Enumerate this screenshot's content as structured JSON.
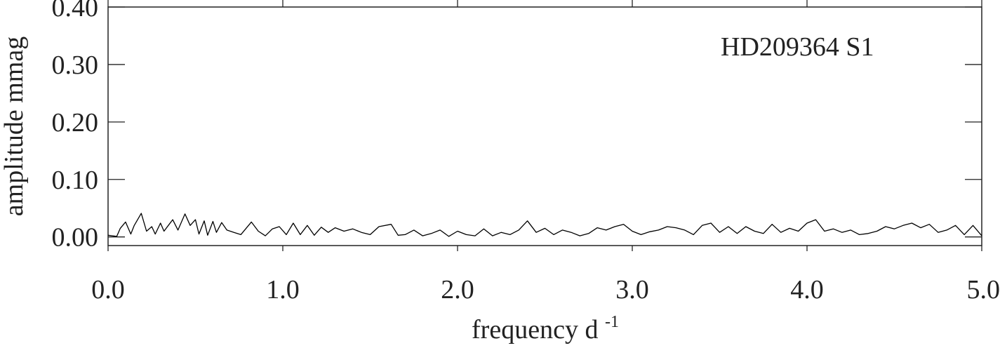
{
  "chart_data": {
    "type": "line",
    "title": "",
    "annotation": "HD209364 S1",
    "xlabel": "frequency d",
    "xlabel_superscript": "-1",
    "ylabel": "amplitude mmag",
    "xlim": [
      0.0,
      5.0
    ],
    "ylim": [
      -0.015,
      0.4
    ],
    "x_ticks": [
      0.0,
      1.0,
      2.0,
      3.0,
      4.0,
      5.0
    ],
    "x_tick_labels": [
      "0.0",
      "1.0",
      "2.0",
      "3.0",
      "4.0",
      "5.0"
    ],
    "y_ticks": [
      0.0,
      0.1,
      0.2,
      0.3,
      0.4
    ],
    "y_tick_labels": [
      "0.00",
      "0.10",
      "0.20",
      "0.30",
      "0.40"
    ],
    "grid": false,
    "legend": "none",
    "series": [
      {
        "color": "#000000",
        "x": [
          0.0,
          0.05,
          0.07,
          0.1,
          0.13,
          0.15,
          0.19,
          0.22,
          0.25,
          0.27,
          0.3,
          0.32,
          0.35,
          0.37,
          0.4,
          0.44,
          0.47,
          0.5,
          0.52,
          0.55,
          0.57,
          0.6,
          0.62,
          0.65,
          0.68,
          0.72,
          0.76,
          0.82,
          0.86,
          0.9,
          0.94,
          0.98,
          1.02,
          1.06,
          1.1,
          1.14,
          1.18,
          1.22,
          1.26,
          1.3,
          1.35,
          1.4,
          1.45,
          1.5,
          1.55,
          1.62,
          1.66,
          1.7,
          1.75,
          1.8,
          1.85,
          1.9,
          1.95,
          2.0,
          2.05,
          2.1,
          2.15,
          2.2,
          2.25,
          2.3,
          2.35,
          2.4,
          2.45,
          2.5,
          2.55,
          2.6,
          2.65,
          2.7,
          2.75,
          2.8,
          2.85,
          2.9,
          2.95,
          3.0,
          3.05,
          3.1,
          3.15,
          3.2,
          3.25,
          3.3,
          3.35,
          3.4,
          3.45,
          3.5,
          3.55,
          3.6,
          3.65,
          3.7,
          3.75,
          3.8,
          3.85,
          3.9,
          3.95,
          4.0,
          4.05,
          4.1,
          4.15,
          4.2,
          4.25,
          4.3,
          4.35,
          4.4,
          4.45,
          4.5,
          4.55,
          4.6,
          4.65,
          4.7,
          4.75,
          4.8,
          4.85,
          4.9,
          4.95,
          5.0
        ],
        "y": [
          0.003,
          0.001,
          0.015,
          0.026,
          0.005,
          0.02,
          0.041,
          0.01,
          0.018,
          0.005,
          0.024,
          0.01,
          0.022,
          0.03,
          0.012,
          0.04,
          0.02,
          0.03,
          0.005,
          0.028,
          0.003,
          0.027,
          0.008,
          0.025,
          0.012,
          0.008,
          0.004,
          0.026,
          0.01,
          0.002,
          0.014,
          0.018,
          0.004,
          0.024,
          0.004,
          0.02,
          0.003,
          0.017,
          0.008,
          0.016,
          0.01,
          0.014,
          0.008,
          0.004,
          0.018,
          0.022,
          0.003,
          0.004,
          0.012,
          0.002,
          0.006,
          0.012,
          0.001,
          0.01,
          0.004,
          0.002,
          0.014,
          0.002,
          0.008,
          0.004,
          0.012,
          0.028,
          0.008,
          0.015,
          0.004,
          0.012,
          0.008,
          0.002,
          0.006,
          0.016,
          0.012,
          0.018,
          0.022,
          0.01,
          0.004,
          0.009,
          0.012,
          0.018,
          0.016,
          0.012,
          0.004,
          0.02,
          0.024,
          0.008,
          0.018,
          0.006,
          0.018,
          0.01,
          0.006,
          0.022,
          0.008,
          0.015,
          0.01,
          0.024,
          0.03,
          0.01,
          0.014,
          0.008,
          0.012,
          0.004,
          0.006,
          0.01,
          0.018,
          0.014,
          0.02,
          0.024,
          0.016,
          0.022,
          0.008,
          0.012,
          0.02,
          0.004,
          0.02,
          0.002
        ]
      }
    ]
  }
}
